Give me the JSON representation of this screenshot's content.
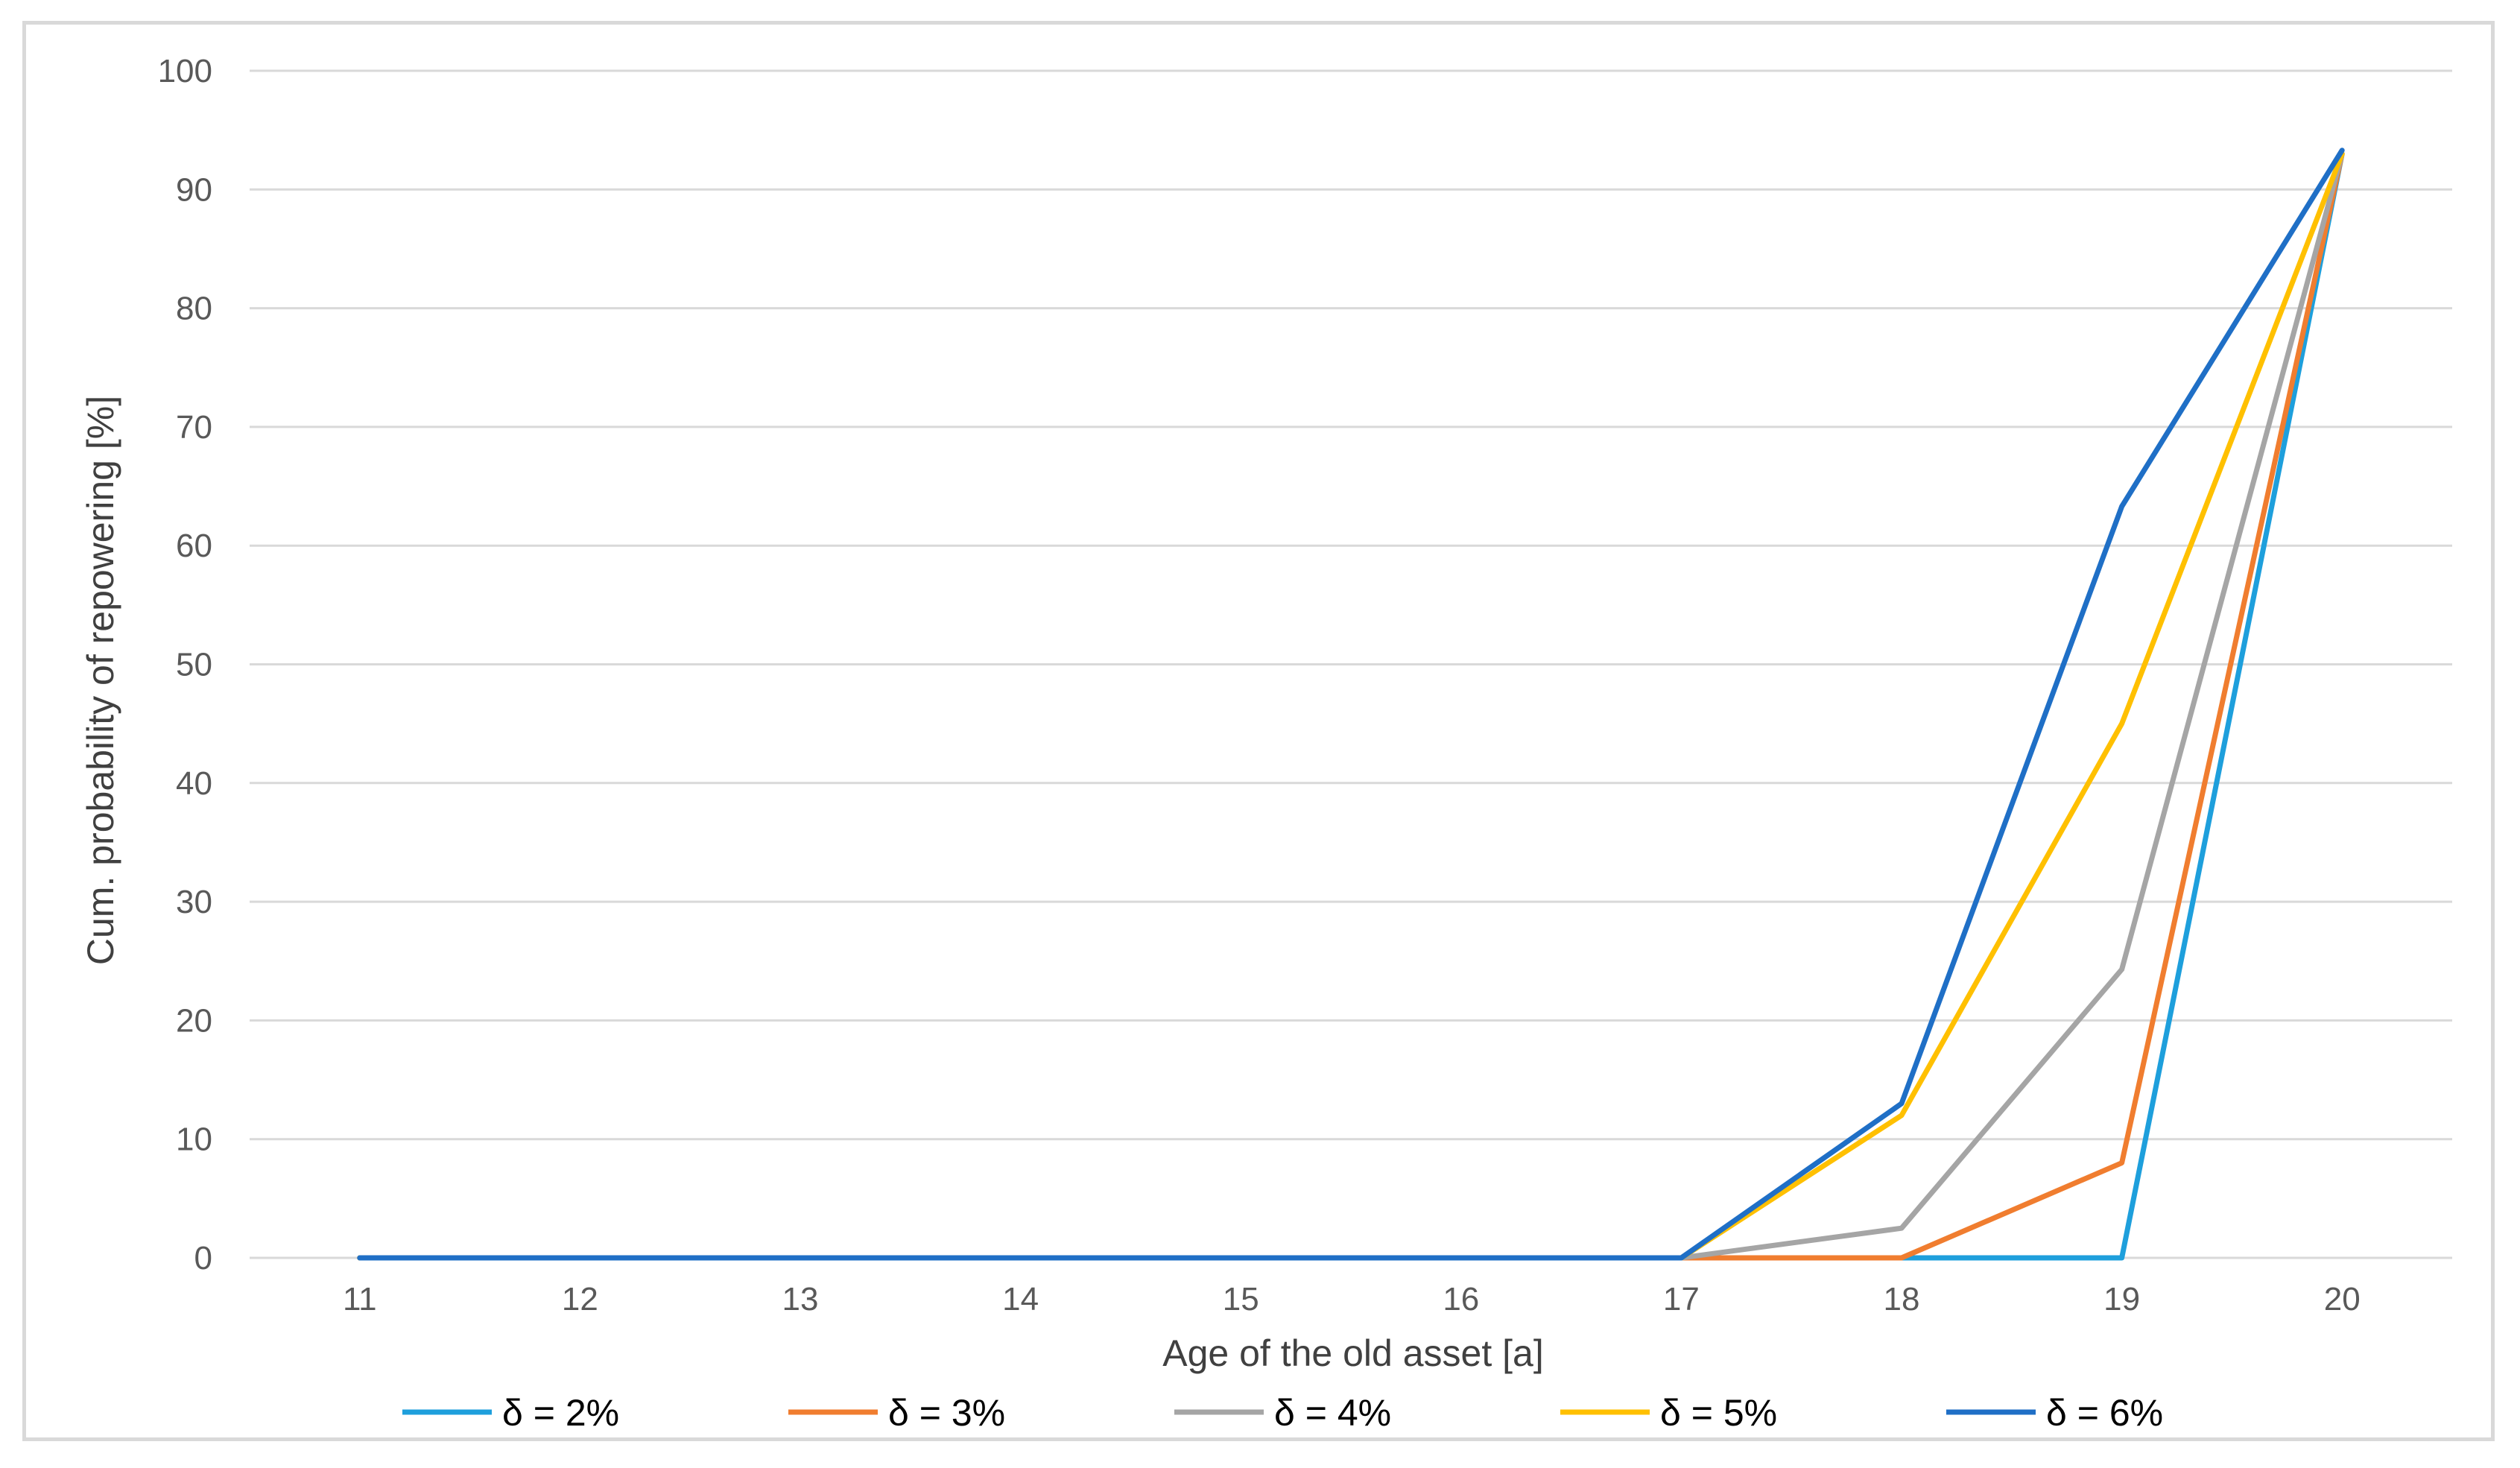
{
  "chart_data": {
    "type": "line",
    "title": "",
    "xlabel": "Age of the old asset [a]",
    "ylabel": "Cum. probability of repowering [%]",
    "categories": [
      "11",
      "12",
      "13",
      "14",
      "15",
      "16",
      "17",
      "18",
      "19",
      "20"
    ],
    "ylim": [
      0,
      100
    ],
    "yticks": [
      0,
      10,
      20,
      30,
      40,
      50,
      60,
      70,
      80,
      90,
      100
    ],
    "grid": "horizontal",
    "legend_position": "bottom",
    "series": [
      {
        "name": "δ = 2%",
        "color": "#1e9fdc",
        "values": [
          0,
          0,
          0,
          0,
          0,
          0,
          0,
          0,
          0,
          93
        ]
      },
      {
        "name": "δ = 3%",
        "color": "#f07d2f",
        "values": [
          0,
          0,
          0,
          0,
          0,
          0,
          0,
          0,
          8,
          93
        ]
      },
      {
        "name": "δ = 4%",
        "color": "#a5a5a5",
        "values": [
          0,
          0,
          0,
          0,
          0,
          0,
          0,
          2.5,
          24.3,
          93
        ]
      },
      {
        "name": "δ = 5%",
        "color": "#ffc000",
        "values": [
          0,
          0,
          0,
          0,
          0,
          0,
          0,
          12,
          45,
          93
        ]
      },
      {
        "name": "δ = 6%",
        "color": "#1f6fc6",
        "values": [
          0,
          0,
          0,
          0,
          0,
          0,
          0,
          13,
          63.3,
          93.3
        ]
      }
    ]
  }
}
